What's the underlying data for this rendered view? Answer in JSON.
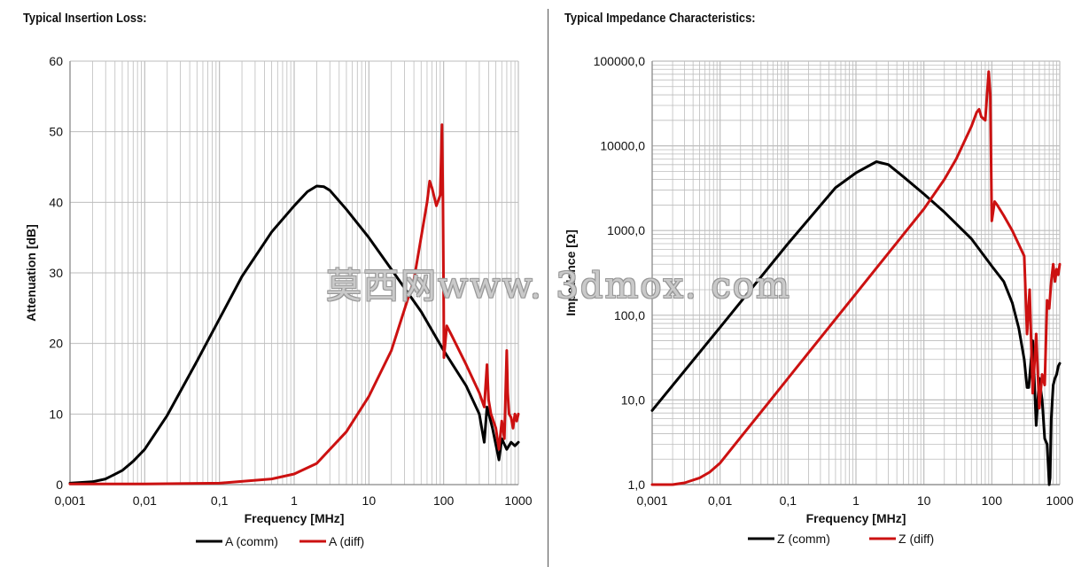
{
  "colors": {
    "comm": "#000000",
    "diff": "#cc1111",
    "grid": "#bdbdbd"
  },
  "watermark": "莫西网www. 3dmox. com",
  "chart_data": [
    {
      "type": "line",
      "title": "Typical Insertion Loss:",
      "xlabel": "Frequency [MHz]",
      "ylabel": "Attenuation [dB]",
      "xscale": "log",
      "yscale": "linear",
      "xlim": [
        0.001,
        1000
      ],
      "ylim": [
        0,
        60
      ],
      "xticks": [
        "0,001",
        "0,01",
        "0,1",
        "1",
        "10",
        "100",
        "1000"
      ],
      "yticks": [
        "0",
        "10",
        "20",
        "30",
        "40",
        "50",
        "60"
      ],
      "grid": true,
      "legend_position": "bottom",
      "series": [
        {
          "name": "A (comm)",
          "color": "#000000",
          "x": [
            0.001,
            0.002,
            0.003,
            0.005,
            0.007,
            0.01,
            0.02,
            0.05,
            0.1,
            0.2,
            0.5,
            1,
            1.5,
            2,
            2.5,
            3,
            5,
            10,
            20,
            50,
            100,
            200,
            300,
            350,
            380,
            450,
            550,
            600,
            700,
            800,
            900,
            1000
          ],
          "y": [
            0.2,
            0.4,
            0.8,
            2.0,
            3.3,
            5.0,
            9.8,
            17.5,
            23.5,
            29.5,
            35.8,
            39.5,
            41.5,
            42.3,
            42.2,
            41.7,
            39.0,
            35.0,
            30.5,
            24.5,
            19.0,
            14.0,
            10.0,
            6.0,
            11.0,
            8.0,
            3.5,
            6.5,
            5.0,
            6.0,
            5.5,
            6.0
          ]
        },
        {
          "name": "A (diff)",
          "color": "#cc1111",
          "x": [
            0.001,
            0.01,
            0.1,
            0.5,
            1,
            2,
            5,
            10,
            20,
            40,
            60,
            65,
            70,
            80,
            90,
            95,
            98,
            100,
            101,
            110,
            130,
            200,
            300,
            350,
            380,
            400,
            430,
            500,
            550,
            600,
            650,
            700,
            720,
            750,
            800,
            850,
            900,
            950,
            1000
          ],
          "y": [
            0.1,
            0.1,
            0.2,
            0.8,
            1.5,
            3.0,
            7.5,
            12.5,
            19.0,
            29.0,
            40.0,
            43.0,
            42.0,
            39.5,
            41.0,
            51.0,
            40.0,
            26.0,
            18.0,
            22.5,
            21.0,
            17.0,
            13.0,
            11.0,
            17.0,
            12.0,
            10.0,
            8.0,
            5.0,
            9.0,
            6.5,
            19.0,
            13.0,
            10.0,
            9.5,
            8.0,
            10.0,
            9.0,
            10.0
          ]
        }
      ]
    },
    {
      "type": "line",
      "title": "Typical Impedance Characteristics:",
      "xlabel": "Frequency  [MHz]",
      "ylabel": "Impedance [Ω]",
      "xscale": "log",
      "yscale": "log",
      "xlim": [
        0.001,
        1000
      ],
      "ylim": [
        1,
        100000
      ],
      "xticks": [
        "0,001",
        "0,01",
        "0,1",
        "1",
        "10",
        "100",
        "1000"
      ],
      "yticks": [
        "1,0",
        "10,0",
        "100,0",
        "1000,0",
        "10000,0",
        "100000,0"
      ],
      "grid": true,
      "legend_position": "bottom",
      "series": [
        {
          "name": "Z  (comm)",
          "color": "#000000",
          "x": [
            0.001,
            0.01,
            0.1,
            0.5,
            1,
            2,
            3,
            5,
            10,
            20,
            50,
            100,
            150,
            200,
            250,
            300,
            330,
            350,
            400,
            450,
            500,
            550,
            600,
            650,
            700,
            720,
            750,
            800,
            850,
            900,
            950,
            1000
          ],
          "y": [
            7.5,
            72,
            700,
            3200,
            4800,
            6500,
            6000,
            4300,
            2700,
            1650,
            800,
            380,
            250,
            140,
            70,
            30,
            14,
            14,
            50,
            5,
            18,
            10,
            3.5,
            3,
            1,
            1.2,
            6,
            15,
            18,
            20,
            25,
            27
          ]
        },
        {
          "name": "Z (diff)",
          "color": "#cc1111",
          "x": [
            0.001,
            0.002,
            0.003,
            0.005,
            0.007,
            0.01,
            0.02,
            0.05,
            0.1,
            0.2,
            0.5,
            1,
            2,
            5,
            10,
            20,
            30,
            50,
            60,
            65,
            70,
            80,
            90,
            95,
            100,
            110,
            120,
            150,
            200,
            300,
            330,
            360,
            400,
            450,
            500,
            550,
            600,
            650,
            700,
            750,
            800,
            850,
            900,
            950,
            1000
          ],
          "y": [
            1.0,
            1.0,
            1.05,
            1.2,
            1.4,
            1.8,
            3.6,
            9,
            18,
            36,
            90,
            180,
            360,
            900,
            1800,
            4000,
            7000,
            17000,
            25000,
            27000,
            22000,
            20000,
            75000,
            40000,
            1300,
            2200,
            2000,
            1500,
            1000,
            500,
            60,
            200,
            12,
            60,
            8,
            20,
            15,
            150,
            120,
            250,
            400,
            250,
            350,
            300,
            400
          ]
        }
      ]
    }
  ]
}
